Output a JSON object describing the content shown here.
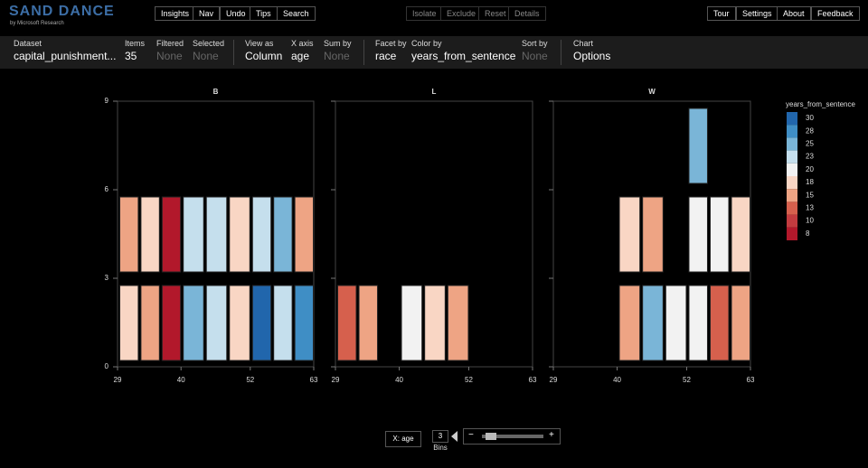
{
  "header": {
    "logo": "SAND DANCE",
    "byline": "by Microsoft Research",
    "left_buttons": [
      "Insights",
      "Nav",
      "Undo",
      "Tips",
      "Search"
    ],
    "center_buttons": [
      "Isolate",
      "Exclude",
      "Reset",
      "Details"
    ],
    "right_buttons": [
      "Tour",
      "Settings",
      "About",
      "Feedback"
    ]
  },
  "fields": [
    {
      "label": "Dataset",
      "value": "capital_punishment..."
    },
    {
      "label": "Items",
      "value": "35"
    },
    {
      "label": "Filtered",
      "value": "None",
      "disabled": true
    },
    {
      "label": "Selected",
      "value": "None",
      "disabled": true
    },
    {
      "label": "View as",
      "value": "Column"
    },
    {
      "label": "X axis",
      "value": "age"
    },
    {
      "label": "Sum by",
      "value": "None",
      "disabled": true
    },
    {
      "label": "Facet by",
      "value": "race"
    },
    {
      "label": "Color by",
      "value": "years_from_sentence"
    },
    {
      "label": "Sort by",
      "value": "None",
      "disabled": true
    },
    {
      "label": "Chart",
      "value": "Options"
    }
  ],
  "legend": {
    "title": "years_from_sentence",
    "ticks": [
      30,
      28,
      25,
      23,
      20,
      18,
      15,
      13,
      10,
      8
    ],
    "colors": [
      "#2166ac",
      "#3f8ec5",
      "#7ab5d7",
      "#c5dfed",
      "#f2f2f2",
      "#f9d6c4",
      "#eea484",
      "#d6604d",
      "#c23b3f",
      "#b2182b"
    ]
  },
  "chart_data": [
    {
      "type": "unit",
      "title": "B",
      "bins": [
        29,
        40,
        52,
        63
      ],
      "xlim": [
        29,
        63
      ],
      "xticks": [
        29,
        40,
        52,
        63
      ],
      "ylim": [
        0,
        9
      ],
      "yticks": [
        0,
        3,
        6,
        9
      ],
      "show_ytick_labels": true,
      "units": [
        [
          18,
          15,
          8,
          15,
          18,
          8
        ],
        [
          25,
          23,
          18,
          23,
          23,
          18
        ],
        [
          30,
          23,
          28,
          23,
          25,
          15
        ]
      ]
    },
    {
      "type": "unit",
      "title": "L",
      "bins": [
        29,
        40,
        52,
        63
      ],
      "xlim": [
        29,
        63
      ],
      "xticks": [
        29,
        40,
        52,
        63
      ],
      "ylim": [
        0,
        9
      ],
      "yticks": [
        0,
        3,
        6,
        9
      ],
      "show_ytick_labels": false,
      "units": [
        [
          13,
          15
        ],
        [
          20,
          18,
          15
        ],
        []
      ]
    },
    {
      "type": "unit",
      "title": "W",
      "bins": [
        29,
        40,
        52,
        63
      ],
      "xlim": [
        29,
        63
      ],
      "xticks": [
        29,
        40,
        52,
        63
      ],
      "ylim": [
        0,
        9
      ],
      "yticks": [
        0,
        3,
        6,
        9
      ],
      "show_ytick_labels": false,
      "units": [
        [],
        [
          15,
          25,
          20,
          18,
          15
        ],
        [
          20,
          13,
          15,
          20,
          20,
          18,
          25
        ]
      ]
    }
  ],
  "footer": {
    "x_button": "X: age",
    "bins": "3",
    "bins_label": "Bins"
  }
}
